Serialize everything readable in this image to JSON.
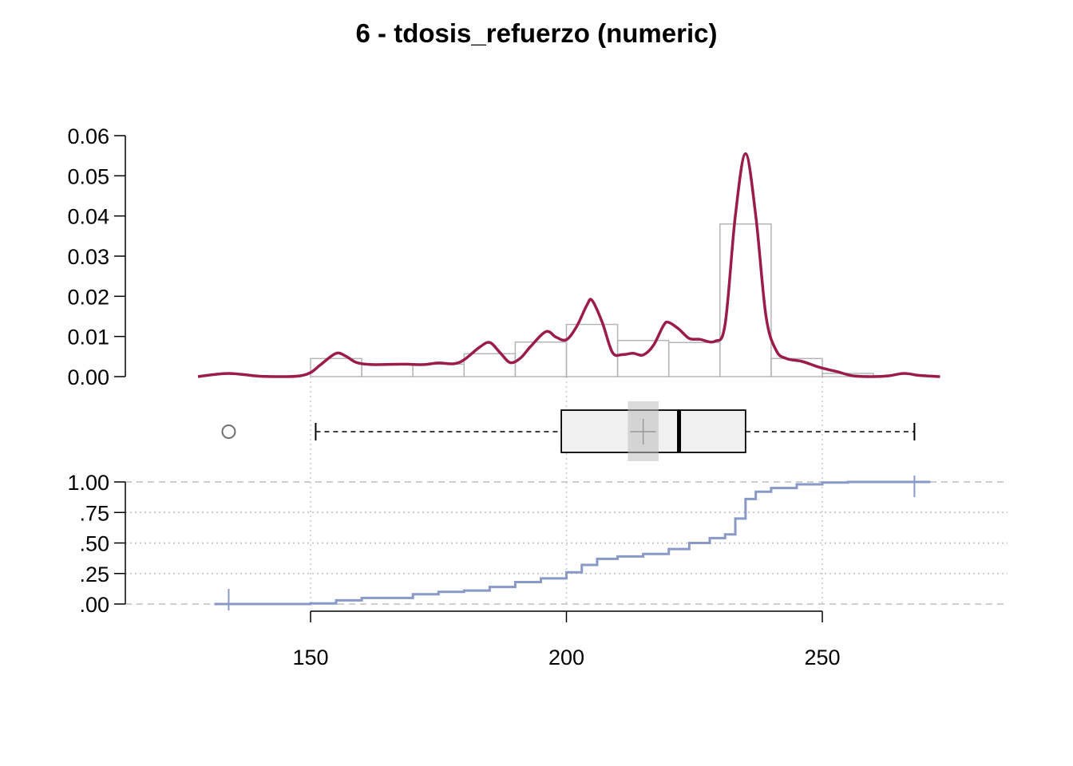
{
  "chart_data": {
    "type": "histogram-density-boxplot-ecdf",
    "title": "6 - tdosis_refuerzo (numeric)",
    "x_axis": {
      "ticks": [
        150,
        200,
        250
      ],
      "range": [
        114,
        288
      ]
    },
    "histogram": {
      "y_ticks": [
        "0.00",
        "0.01",
        "0.02",
        "0.03",
        "0.04",
        "0.05",
        "0.06"
      ],
      "y_range": [
        0,
        0.06
      ],
      "bin_width": 10,
      "bins": [
        {
          "x0": 150,
          "x1": 160,
          "density": 0.0045
        },
        {
          "x0": 160,
          "x1": 170,
          "density": 0.0031
        },
        {
          "x0": 170,
          "x1": 180,
          "density": 0.0031
        },
        {
          "x0": 180,
          "x1": 190,
          "density": 0.0057
        },
        {
          "x0": 190,
          "x1": 200,
          "density": 0.0086
        },
        {
          "x0": 200,
          "x1": 210,
          "density": 0.013
        },
        {
          "x0": 210,
          "x1": 220,
          "density": 0.009
        },
        {
          "x0": 220,
          "x1": 230,
          "density": 0.0085
        },
        {
          "x0": 230,
          "x1": 240,
          "density": 0.038
        },
        {
          "x0": 240,
          "x1": 250,
          "density": 0.0045
        },
        {
          "x0": 250,
          "x1": 260,
          "density": 0.0008
        }
      ],
      "density_curve": {
        "color": "#9b1b4a",
        "points": [
          [
            128,
            0.0
          ],
          [
            131,
            0.0005
          ],
          [
            134,
            0.0008
          ],
          [
            137,
            0.0005
          ],
          [
            140,
            0.0001
          ],
          [
            145,
            0.0
          ],
          [
            148,
            0.0002
          ],
          [
            150,
            0.001
          ],
          [
            152,
            0.003
          ],
          [
            155,
            0.0058
          ],
          [
            157,
            0.005
          ],
          [
            159,
            0.0035
          ],
          [
            162,
            0.003
          ],
          [
            168,
            0.0031
          ],
          [
            172,
            0.003
          ],
          [
            175,
            0.0034
          ],
          [
            178,
            0.0032
          ],
          [
            180,
            0.0042
          ],
          [
            183,
            0.0073
          ],
          [
            185,
            0.0085
          ],
          [
            187,
            0.006
          ],
          [
            189,
            0.0035
          ],
          [
            191,
            0.0046
          ],
          [
            193,
            0.0075
          ],
          [
            196,
            0.0112
          ],
          [
            198,
            0.0098
          ],
          [
            200,
            0.0092
          ],
          [
            202,
            0.0125
          ],
          [
            204,
            0.0178
          ],
          [
            205,
            0.019
          ],
          [
            207,
            0.0135
          ],
          [
            209,
            0.006
          ],
          [
            211,
            0.0055
          ],
          [
            213,
            0.0058
          ],
          [
            215,
            0.0054
          ],
          [
            217,
            0.0078
          ],
          [
            219,
            0.0128
          ],
          [
            220,
            0.0135
          ],
          [
            222,
            0.0118
          ],
          [
            224,
            0.0095
          ],
          [
            226,
            0.0093
          ],
          [
            229,
            0.0088
          ],
          [
            231,
            0.013
          ],
          [
            233,
            0.04
          ],
          [
            235,
            0.0555
          ],
          [
            237,
            0.04
          ],
          [
            239,
            0.015
          ],
          [
            241,
            0.0065
          ],
          [
            243,
            0.0045
          ],
          [
            246,
            0.0038
          ],
          [
            249,
            0.0025
          ],
          [
            251,
            0.0018
          ],
          [
            253,
            0.0012
          ],
          [
            256,
            0.0002
          ],
          [
            260,
            0.0
          ],
          [
            263,
            0.0002
          ],
          [
            266,
            0.0008
          ],
          [
            269,
            0.0003
          ],
          [
            273,
            0.0
          ]
        ]
      }
    },
    "boxplot": {
      "min_whisker": 151,
      "q1": 199,
      "median": 222,
      "q3": 235,
      "max_whisker": 268,
      "mean": 215,
      "mean_ci": [
        212,
        218
      ],
      "outliers": [
        134
      ]
    },
    "ecdf": {
      "y_ticks": [
        ".00",
        ".25",
        ".50",
        ".75",
        "1.00"
      ],
      "y_range": [
        0,
        1
      ],
      "color": "#8a9ac8",
      "points": [
        [
          134,
          0.0
        ],
        [
          150,
          0.005
        ],
        [
          155,
          0.03
        ],
        [
          160,
          0.05
        ],
        [
          170,
          0.08
        ],
        [
          175,
          0.1
        ],
        [
          180,
          0.11
        ],
        [
          185,
          0.14
        ],
        [
          190,
          0.18
        ],
        [
          195,
          0.21
        ],
        [
          200,
          0.26
        ],
        [
          203,
          0.32
        ],
        [
          206,
          0.37
        ],
        [
          210,
          0.39
        ],
        [
          215,
          0.41
        ],
        [
          220,
          0.45
        ],
        [
          224,
          0.5
        ],
        [
          228,
          0.54
        ],
        [
          231,
          0.57
        ],
        [
          233,
          0.7
        ],
        [
          235,
          0.86
        ],
        [
          237,
          0.92
        ],
        [
          240,
          0.95
        ],
        [
          245,
          0.98
        ],
        [
          250,
          0.995
        ],
        [
          255,
          1.0
        ],
        [
          268,
          1.0
        ]
      ],
      "end_ticks": [
        134,
        268
      ]
    }
  }
}
